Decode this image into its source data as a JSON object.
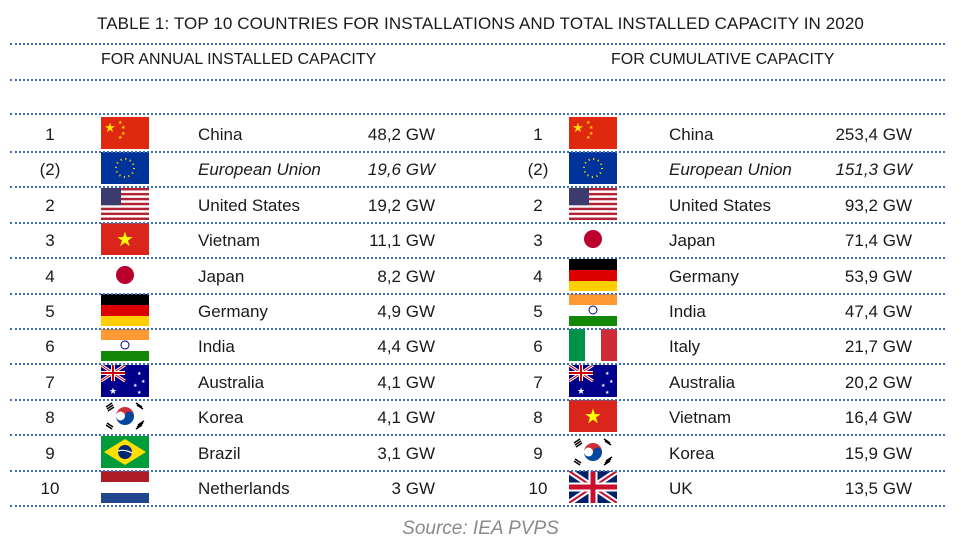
{
  "title": "TABLE 1: TOP 10 COUNTRIES FOR INSTALLATIONS AND TOTAL INSTALLED CAPACITY IN 2020",
  "annual": {
    "heading": "FOR ANNUAL INSTALLED CAPACITY",
    "rows": [
      {
        "rank": "1",
        "country": "China",
        "value": "48,2 GW",
        "flag": "china-flag"
      },
      {
        "rank": "(2)",
        "country": "European Union",
        "value": "19,6 GW",
        "flag": "eu-flag"
      },
      {
        "rank": "2",
        "country": "United States",
        "value": "19,2 GW",
        "flag": "usa-flag"
      },
      {
        "rank": "3",
        "country": "Vietnam",
        "value": "11,1 GW",
        "flag": "vietnam-flag"
      },
      {
        "rank": "4",
        "country": "Japan",
        "value": "8,2 GW",
        "flag": "japan-flag"
      },
      {
        "rank": "5",
        "country": "Germany",
        "value": "4,9 GW",
        "flag": "germany-flag"
      },
      {
        "rank": "6",
        "country": "India",
        "value": "4,4 GW",
        "flag": "india-flag"
      },
      {
        "rank": "7",
        "country": "Australia",
        "value": "4,1 GW",
        "flag": "australia-flag"
      },
      {
        "rank": "8",
        "country": "Korea",
        "value": "4,1 GW",
        "flag": "korea-flag"
      },
      {
        "rank": "9",
        "country": "Brazil",
        "value": "3,1 GW",
        "flag": "brazil-flag"
      },
      {
        "rank": "10",
        "country": "Netherlands",
        "value": "3 GW",
        "flag": "netherlands-flag"
      }
    ]
  },
  "cumulative": {
    "heading": "FOR CUMULATIVE CAPACITY",
    "rows": [
      {
        "rank": "1",
        "country": "China",
        "value": "253,4 GW",
        "flag": "china-flag"
      },
      {
        "rank": "(2)",
        "country": "European Union",
        "value": "151,3 GW",
        "flag": "eu-flag"
      },
      {
        "rank": "2",
        "country": "United States",
        "value": "93,2 GW",
        "flag": "usa-flag"
      },
      {
        "rank": "3",
        "country": "Japan",
        "value": "71,4 GW",
        "flag": "japan-flag"
      },
      {
        "rank": "4",
        "country": "Germany",
        "value": "53,9 GW",
        "flag": "germany-flag"
      },
      {
        "rank": "5",
        "country": "India",
        "value": "47,4 GW",
        "flag": "india-flag"
      },
      {
        "rank": "6",
        "country": "Italy",
        "value": "21,7 GW",
        "flag": "italy-flag"
      },
      {
        "rank": "7",
        "country": "Australia",
        "value": "20,2 GW",
        "flag": "australia-flag"
      },
      {
        "rank": "8",
        "country": "Vietnam",
        "value": "16,4 GW",
        "flag": "vietnam-flag"
      },
      {
        "rank": "9",
        "country": "Korea",
        "value": "15,9 GW",
        "flag": "korea-flag"
      },
      {
        "rank": "10",
        "country": "UK",
        "value": "13,5 GW",
        "flag": "uk-flag"
      }
    ]
  },
  "source": "Source: IEA PVPS",
  "colors": {
    "rule": "#3d6fb6",
    "source_text": "#8a8a8a"
  }
}
